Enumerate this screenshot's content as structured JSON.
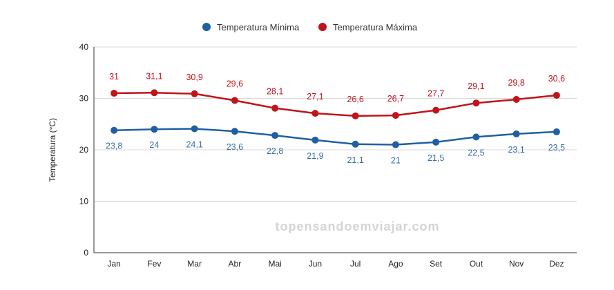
{
  "chart_data": {
    "type": "line",
    "title": "",
    "xlabel": "",
    "ylabel": "Temperatura (°C)",
    "ylim": [
      0,
      40
    ],
    "yticks": [
      0,
      10,
      20,
      30,
      40
    ],
    "grid": true,
    "legend_position": "top",
    "categories": [
      "Jan",
      "Fev",
      "Mar",
      "Abr",
      "Mai",
      "Jun",
      "Jul",
      "Ago",
      "Set",
      "Out",
      "Nov",
      "Dez"
    ],
    "series": [
      {
        "name": "Temperatura Mínima",
        "color": "#1f5fa3",
        "label_color": "#3a6ea5",
        "labels_position": "below",
        "values": [
          23.8,
          24,
          24.1,
          23.6,
          22.8,
          21.9,
          21.1,
          21,
          21.5,
          22.5,
          23.1,
          23.5
        ],
        "labels": [
          "23,8",
          "24",
          "24,1",
          "23,6",
          "22,8",
          "21,9",
          "21,1",
          "21",
          "21,5",
          "22,5",
          "23,1",
          "23,5"
        ]
      },
      {
        "name": "Temperatura Máxima",
        "color": "#c0141a",
        "label_color": "#c0141a",
        "labels_position": "above",
        "values": [
          31,
          31.1,
          30.9,
          29.6,
          28.1,
          27.1,
          26.6,
          26.7,
          27.7,
          29.1,
          29.8,
          30.6
        ],
        "labels": [
          "31",
          "31,1",
          "30,9",
          "29,6",
          "28,1",
          "27,1",
          "26,6",
          "26,7",
          "27,7",
          "29,1",
          "29,8",
          "30,6"
        ]
      }
    ]
  },
  "watermark": "topensandoemviajar.com"
}
